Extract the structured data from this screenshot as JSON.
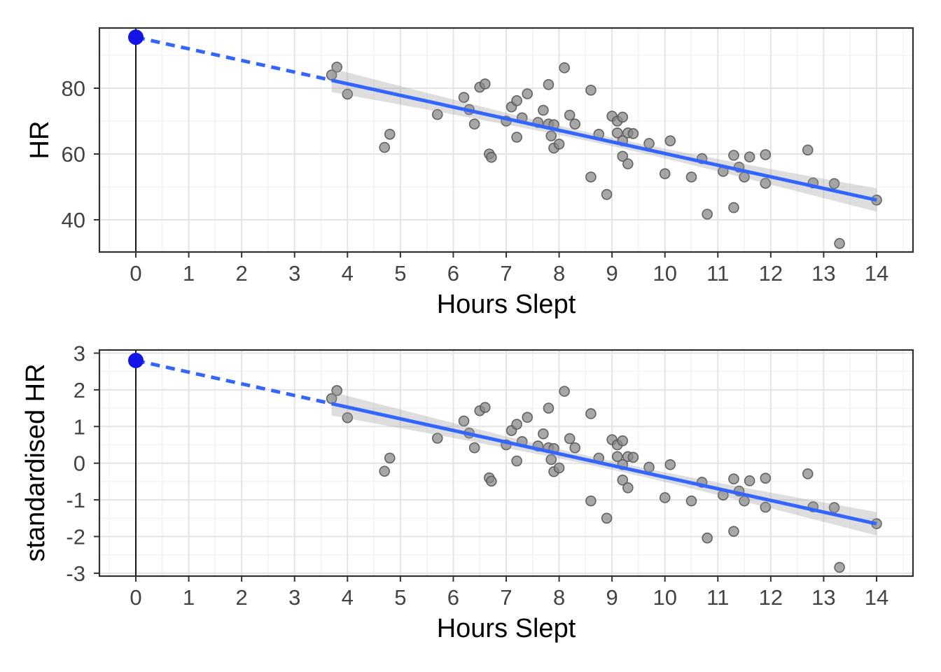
{
  "figure": {
    "background": "#FFFFFF",
    "panel_fill": "#FFFFFF",
    "panel_border_color": "#2F2F2F",
    "grid_major_color": "#E4E4E4",
    "grid_minor_color": "#F1F1F1",
    "tick_mark_color": "#333333",
    "axis_text_color": "#434343",
    "axis_title_color": "#000000",
    "scatter_fill": "#8A8A8A",
    "scatter_stroke": "#565656",
    "ribbon_color": "#9B9B9B",
    "smooth_line_color": "#3366FF",
    "dashed_line_color": "#3366FF",
    "intercept_point_color": "#1414E6",
    "zero_vline_color": "#000000"
  },
  "chart_data": [
    {
      "type": "scatter",
      "title": "",
      "xlabel": "Hours Slept",
      "ylabel": "HR",
      "x_ticks": [
        0,
        1,
        2,
        3,
        4,
        5,
        6,
        7,
        8,
        9,
        10,
        11,
        12,
        13,
        14
      ],
      "y_ticks": [
        80,
        60,
        40
      ],
      "xlim": [
        -0.7,
        14.7
      ],
      "ylim": [
        29.7,
        98.6
      ],
      "grid": true,
      "legend": "none",
      "points": [
        [
          3.7,
          84.0
        ],
        [
          3.8,
          86.4
        ],
        [
          4.0,
          78.2
        ],
        [
          4.7,
          62.0
        ],
        [
          4.8,
          66.0
        ],
        [
          5.7,
          72.0
        ],
        [
          6.2,
          77.2
        ],
        [
          6.3,
          73.5
        ],
        [
          6.4,
          69.1
        ],
        [
          6.5,
          80.3
        ],
        [
          6.6,
          81.3
        ],
        [
          6.68,
          60.0
        ],
        [
          6.72,
          59.0
        ],
        [
          7.0,
          70.0
        ],
        [
          7.1,
          74.3
        ],
        [
          7.2,
          76.2
        ],
        [
          7.2,
          65.1
        ],
        [
          7.3,
          71.0
        ],
        [
          7.4,
          78.3
        ],
        [
          7.6,
          69.6
        ],
        [
          7.7,
          73.3
        ],
        [
          7.8,
          81.1
        ],
        [
          7.8,
          69.1
        ],
        [
          7.85,
          65.5
        ],
        [
          7.9,
          68.9
        ],
        [
          7.9,
          61.8
        ],
        [
          8.0,
          63.0
        ],
        [
          8.1,
          86.2
        ],
        [
          8.2,
          71.8
        ],
        [
          8.3,
          69.1
        ],
        [
          8.6,
          79.4
        ],
        [
          8.6,
          53.0
        ],
        [
          8.75,
          66.0
        ],
        [
          8.9,
          47.7
        ],
        [
          9.0,
          71.5
        ],
        [
          9.1,
          70.0
        ],
        [
          9.1,
          66.4
        ],
        [
          9.2,
          71.2
        ],
        [
          9.2,
          64.0
        ],
        [
          9.2,
          59.3
        ],
        [
          9.3,
          66.4
        ],
        [
          9.3,
          57.0
        ],
        [
          9.4,
          66.2
        ],
        [
          9.7,
          63.2
        ],
        [
          10.0,
          54.0
        ],
        [
          10.1,
          64.0
        ],
        [
          10.5,
          53.0
        ],
        [
          10.7,
          58.6
        ],
        [
          10.8,
          41.7
        ],
        [
          11.1,
          54.7
        ],
        [
          11.3,
          59.6
        ],
        [
          11.3,
          43.7
        ],
        [
          11.4,
          56.0
        ],
        [
          11.5,
          53.0
        ],
        [
          11.6,
          59.1
        ],
        [
          11.9,
          59.8
        ],
        [
          11.9,
          51.1
        ],
        [
          12.7,
          61.2
        ],
        [
          12.8,
          51.2
        ],
        [
          13.2,
          51.0
        ],
        [
          13.3,
          32.8
        ],
        [
          14.0,
          46.0
        ]
      ],
      "regression": {
        "intercept": 95.5,
        "slope": -3.536,
        "solid_from_x": 3.7,
        "solid_to_x": 14,
        "dashed_from_x": 0,
        "dashed_to_x": 3.7,
        "intercept_point": [
          0,
          95.5
        ]
      },
      "ribbon": {
        "center_x": 8.9,
        "min_halfwidth": 1.3,
        "curvature": 0.417
      },
      "zero_vline_x": 0
    },
    {
      "type": "scatter",
      "title": "",
      "xlabel": "Hours Slept",
      "ylabel": "standardised HR",
      "x_ticks": [
        0,
        1,
        2,
        3,
        4,
        5,
        6,
        7,
        8,
        9,
        10,
        11,
        12,
        13,
        14
      ],
      "y_ticks": [
        3,
        2,
        1,
        0,
        -1,
        -2,
        -3
      ],
      "xlim": [
        -0.7,
        14.7
      ],
      "ylim": [
        -3.08,
        3.09
      ],
      "grid": true,
      "legend": "none",
      "points": [
        [
          3.7,
          1.76
        ],
        [
          3.8,
          1.98
        ],
        [
          4.0,
          1.24
        ],
        [
          4.7,
          -0.22
        ],
        [
          4.8,
          0.14
        ],
        [
          5.7,
          0.68
        ],
        [
          6.2,
          1.15
        ],
        [
          6.3,
          0.82
        ],
        [
          6.4,
          0.42
        ],
        [
          6.5,
          1.43
        ],
        [
          6.6,
          1.52
        ],
        [
          6.68,
          -0.4
        ],
        [
          6.72,
          -0.49
        ],
        [
          7.0,
          0.5
        ],
        [
          7.1,
          0.89
        ],
        [
          7.2,
          1.06
        ],
        [
          7.2,
          0.06
        ],
        [
          7.3,
          0.59
        ],
        [
          7.4,
          1.25
        ],
        [
          7.6,
          0.47
        ],
        [
          7.7,
          0.8
        ],
        [
          7.8,
          1.5
        ],
        [
          7.8,
          0.42
        ],
        [
          7.85,
          0.1
        ],
        [
          7.9,
          0.4
        ],
        [
          7.9,
          -0.23
        ],
        [
          8.0,
          -0.13
        ],
        [
          8.1,
          1.96
        ],
        [
          8.2,
          0.67
        ],
        [
          8.3,
          0.42
        ],
        [
          8.6,
          1.35
        ],
        [
          8.6,
          -1.03
        ],
        [
          8.75,
          0.14
        ],
        [
          8.9,
          -1.5
        ],
        [
          9.0,
          0.64
        ],
        [
          9.1,
          0.5
        ],
        [
          9.1,
          0.18
        ],
        [
          9.2,
          0.61
        ],
        [
          9.2,
          -0.04
        ],
        [
          9.2,
          -0.46
        ],
        [
          9.3,
          0.18
        ],
        [
          9.3,
          -0.67
        ],
        [
          9.4,
          0.16
        ],
        [
          9.7,
          -0.11
        ],
        [
          10.0,
          -0.94
        ],
        [
          10.1,
          -0.04
        ],
        [
          10.5,
          -1.03
        ],
        [
          10.7,
          -0.52
        ],
        [
          10.8,
          -2.04
        ],
        [
          11.1,
          -0.87
        ],
        [
          11.3,
          -0.43
        ],
        [
          11.3,
          -1.86
        ],
        [
          11.4,
          -0.76
        ],
        [
          11.5,
          -1.03
        ],
        [
          11.6,
          -0.48
        ],
        [
          11.9,
          -0.41
        ],
        [
          11.9,
          -1.2
        ],
        [
          12.7,
          -0.29
        ],
        [
          12.8,
          -1.19
        ],
        [
          13.2,
          -1.21
        ],
        [
          13.3,
          -2.84
        ],
        [
          14.0,
          -1.65
        ]
      ],
      "regression": {
        "intercept": 2.8,
        "slope": -0.318,
        "solid_from_x": 3.7,
        "solid_to_x": 14,
        "dashed_from_x": 0,
        "dashed_to_x": 3.7,
        "intercept_point": [
          0,
          2.8
        ]
      },
      "ribbon": {
        "center_x": 8.9,
        "min_halfwidth": 0.117,
        "curvature": 0.00338
      },
      "zero_vline_x": 0
    }
  ]
}
